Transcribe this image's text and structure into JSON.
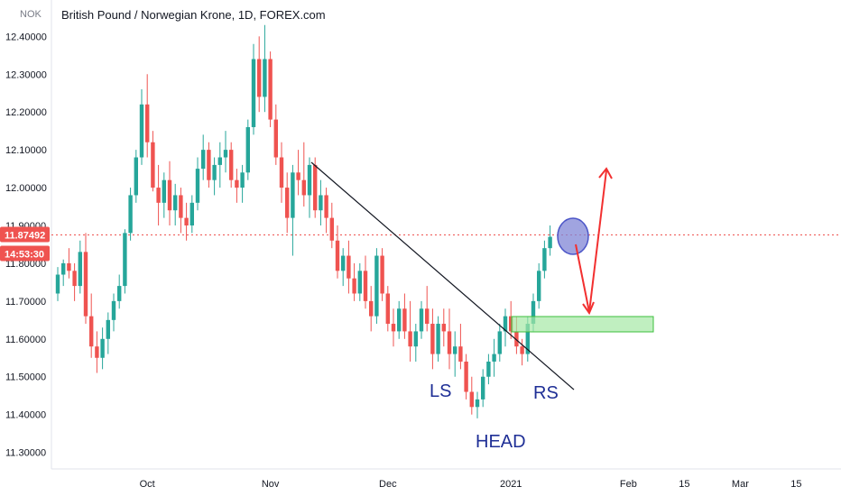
{
  "header": {
    "title": "British Pound / Norwegian Krone, 1D, FOREX.com",
    "unit": "NOK"
  },
  "chart_data": {
    "type": "candlestick",
    "ylim": [
      11.28,
      12.52
    ],
    "y_ticks": [
      "11.30000",
      "11.40000",
      "11.50000",
      "11.60000",
      "11.70000",
      "11.80000",
      "11.90000",
      "12.00000",
      "12.10000",
      "12.20000",
      "12.30000",
      "12.40000"
    ],
    "x_ticks": [
      {
        "label": "Oct",
        "idx": 16
      },
      {
        "label": "Nov",
        "idx": 38
      },
      {
        "label": "Dec",
        "idx": 59
      },
      {
        "label": "2021",
        "idx": 81
      },
      {
        "label": "Feb",
        "idx": 102
      },
      {
        "label": "15",
        "idx": 112
      },
      {
        "label": "Mar",
        "idx": 122
      },
      {
        "label": "15",
        "idx": 132
      }
    ],
    "current_price": 11.87492,
    "current_price_label": "11.87492",
    "countdown_label": "14:53:30",
    "candles": [
      [
        11.72,
        11.79,
        11.7,
        11.77
      ],
      [
        11.77,
        11.81,
        11.74,
        11.8
      ],
      [
        11.8,
        11.84,
        11.76,
        11.78
      ],
      [
        11.78,
        11.8,
        11.7,
        11.74
      ],
      [
        11.74,
        11.86,
        11.72,
        11.83
      ],
      [
        11.83,
        11.88,
        11.64,
        11.66
      ],
      [
        11.66,
        11.72,
        11.55,
        11.58
      ],
      [
        11.58,
        11.62,
        11.51,
        11.55
      ],
      [
        11.55,
        11.63,
        11.52,
        11.6
      ],
      [
        11.6,
        11.67,
        11.56,
        11.65
      ],
      [
        11.65,
        11.72,
        11.62,
        11.7
      ],
      [
        11.7,
        11.77,
        11.68,
        11.74
      ],
      [
        11.74,
        11.89,
        11.72,
        11.88
      ],
      [
        11.88,
        12.0,
        11.86,
        11.98
      ],
      [
        11.98,
        12.1,
        11.96,
        12.08
      ],
      [
        12.08,
        12.26,
        12.06,
        12.22
      ],
      [
        12.22,
        12.3,
        12.08,
        12.12
      ],
      [
        12.12,
        12.15,
        11.99,
        12.0
      ],
      [
        12.0,
        12.06,
        11.9,
        11.96
      ],
      [
        11.96,
        12.04,
        11.92,
        12.02
      ],
      [
        12.02,
        12.07,
        11.9,
        11.94
      ],
      [
        11.94,
        12.01,
        11.9,
        11.98
      ],
      [
        11.98,
        12.0,
        11.88,
        11.92
      ],
      [
        11.92,
        11.96,
        11.86,
        11.9
      ],
      [
        11.9,
        11.98,
        11.88,
        11.96
      ],
      [
        11.96,
        12.08,
        11.94,
        12.05
      ],
      [
        12.05,
        12.14,
        12.02,
        12.1
      ],
      [
        12.1,
        12.12,
        12.0,
        12.02
      ],
      [
        12.02,
        12.08,
        11.98,
        12.06
      ],
      [
        12.06,
        12.12,
        12.0,
        12.08
      ],
      [
        12.08,
        12.15,
        12.04,
        12.1
      ],
      [
        12.1,
        12.12,
        12.0,
        12.02
      ],
      [
        12.02,
        12.05,
        11.96,
        12.0
      ],
      [
        12.0,
        12.06,
        11.96,
        12.04
      ],
      [
        12.04,
        12.18,
        12.02,
        12.16
      ],
      [
        12.16,
        12.38,
        12.14,
        12.34
      ],
      [
        12.34,
        12.4,
        12.2,
        12.24
      ],
      [
        12.24,
        12.43,
        12.2,
        12.34
      ],
      [
        12.34,
        12.36,
        12.16,
        12.18
      ],
      [
        12.18,
        12.22,
        12.06,
        12.08
      ],
      [
        12.08,
        12.12,
        11.96,
        12.0
      ],
      [
        12.0,
        12.04,
        11.88,
        11.92
      ],
      [
        11.92,
        12.06,
        11.82,
        12.04
      ],
      [
        12.04,
        12.1,
        11.98,
        12.02
      ],
      [
        12.02,
        12.12,
        11.95,
        11.98
      ],
      [
        11.98,
        12.08,
        11.92,
        12.06
      ],
      [
        12.06,
        12.08,
        11.92,
        11.94
      ],
      [
        11.94,
        12.02,
        11.9,
        11.98
      ],
      [
        11.98,
        12.0,
        11.88,
        11.92
      ],
      [
        11.92,
        11.96,
        11.84,
        11.86
      ],
      [
        11.86,
        11.9,
        11.76,
        11.78
      ],
      [
        11.78,
        11.84,
        11.74,
        11.82
      ],
      [
        11.82,
        11.86,
        11.72,
        11.76
      ],
      [
        11.76,
        11.8,
        11.7,
        11.72
      ],
      [
        11.72,
        11.8,
        11.7,
        11.78
      ],
      [
        11.78,
        11.82,
        11.68,
        11.7
      ],
      [
        11.7,
        11.74,
        11.62,
        11.66
      ],
      [
        11.66,
        11.84,
        11.64,
        11.82
      ],
      [
        11.82,
        11.84,
        11.7,
        11.72
      ],
      [
        11.72,
        11.74,
        11.62,
        11.64
      ],
      [
        11.64,
        11.68,
        11.58,
        11.62
      ],
      [
        11.62,
        11.7,
        11.6,
        11.68
      ],
      [
        11.68,
        11.72,
        11.6,
        11.62
      ],
      [
        11.62,
        11.7,
        11.54,
        11.58
      ],
      [
        11.58,
        11.64,
        11.54,
        11.62
      ],
      [
        11.62,
        11.7,
        11.6,
        11.68
      ],
      [
        11.68,
        11.74,
        11.62,
        11.64
      ],
      [
        11.64,
        11.68,
        11.52,
        11.56
      ],
      [
        11.56,
        11.66,
        11.54,
        11.64
      ],
      [
        11.64,
        11.68,
        11.58,
        11.62
      ],
      [
        11.62,
        11.68,
        11.52,
        11.56
      ],
      [
        11.56,
        11.62,
        11.5,
        11.58
      ],
      [
        11.58,
        11.64,
        11.52,
        11.54
      ],
      [
        11.54,
        11.56,
        11.44,
        11.46
      ],
      [
        11.46,
        11.5,
        11.4,
        11.42
      ],
      [
        11.42,
        11.46,
        11.39,
        11.44
      ],
      [
        11.44,
        11.52,
        11.42,
        11.5
      ],
      [
        11.5,
        11.56,
        11.48,
        11.54
      ],
      [
        11.54,
        11.6,
        11.5,
        11.56
      ],
      [
        11.56,
        11.64,
        11.54,
        11.62
      ],
      [
        11.62,
        11.68,
        11.58,
        11.66
      ],
      [
        11.66,
        11.7,
        11.6,
        11.62
      ],
      [
        11.62,
        11.66,
        11.56,
        11.58
      ],
      [
        11.58,
        11.6,
        11.53,
        11.56
      ],
      [
        11.56,
        11.66,
        11.54,
        11.64
      ],
      [
        11.64,
        11.72,
        11.62,
        11.7
      ],
      [
        11.7,
        11.8,
        11.68,
        11.78
      ],
      [
        11.78,
        11.86,
        11.76,
        11.84
      ],
      [
        11.84,
        11.9,
        11.82,
        11.87
      ]
    ],
    "annotations": {
      "labels": [
        "LS",
        "HEAD",
        "RS"
      ]
    }
  }
}
